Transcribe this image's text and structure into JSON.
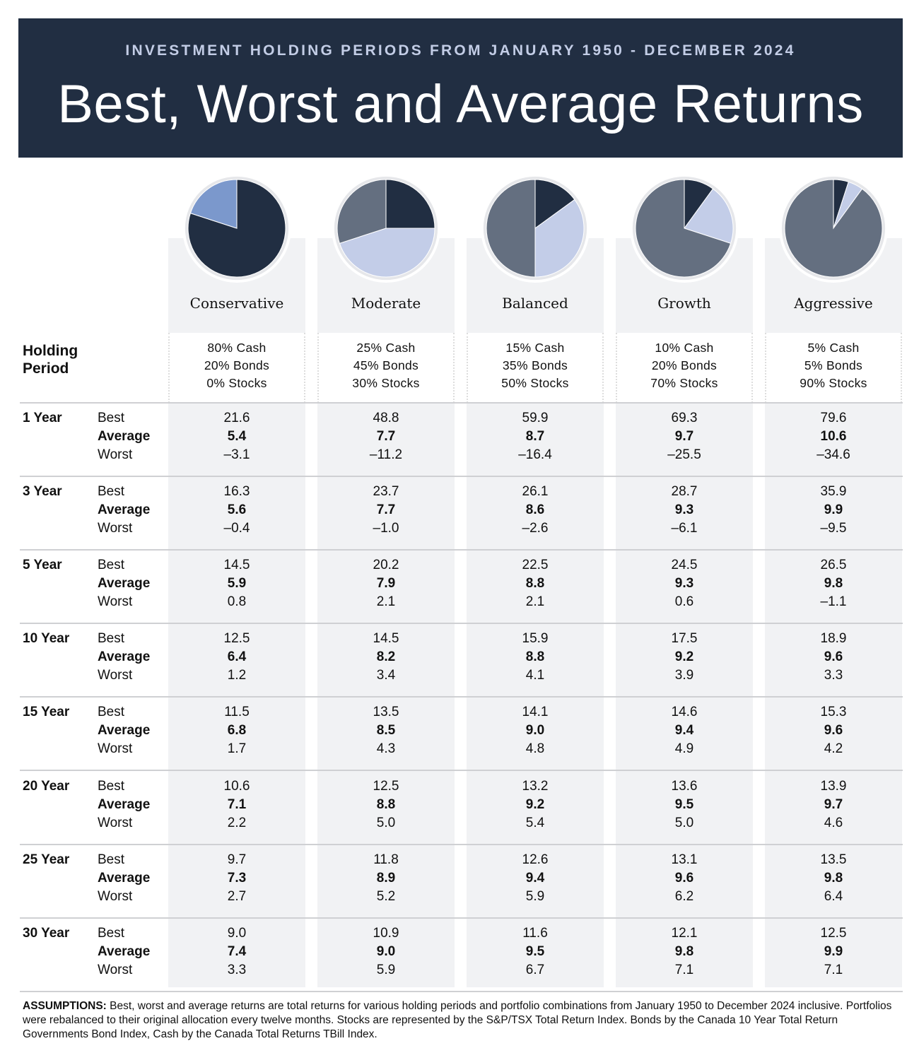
{
  "header": {
    "subtitle": "INVESTMENT HOLDING PERIODS FROM JANUARY 1950 - DECEMBER 2024",
    "title": "Best, Worst and Average Returns"
  },
  "holding_period_label": "Holding Period",
  "colors": {
    "cash": "#212e42",
    "bonds": "#c3cde8",
    "bonds_conservative": "#7b98cc",
    "stocks": "#646f80",
    "banner": "#212e42"
  },
  "chart_data": {
    "type": "table",
    "portfolios": [
      {
        "name": "Conservative",
        "alloc": [
          "80% Cash",
          "20% Bonds",
          "0% Stocks"
        ],
        "pie": {
          "cash": 80,
          "bonds": 20,
          "stocks": 0
        }
      },
      {
        "name": "Moderate",
        "alloc": [
          "25% Cash",
          "45% Bonds",
          "30% Stocks"
        ],
        "pie": {
          "cash": 25,
          "bonds": 45,
          "stocks": 30
        }
      },
      {
        "name": "Balanced",
        "alloc": [
          "15% Cash",
          "35% Bonds",
          "50% Stocks"
        ],
        "pie": {
          "cash": 15,
          "bonds": 35,
          "stocks": 50
        }
      },
      {
        "name": "Growth",
        "alloc": [
          "10% Cash",
          "20% Bonds",
          "70% Stocks"
        ],
        "pie": {
          "cash": 10,
          "bonds": 20,
          "stocks": 70
        }
      },
      {
        "name": "Aggressive",
        "alloc": [
          "5% Cash",
          "5% Bonds",
          "90% Stocks"
        ],
        "pie": {
          "cash": 5,
          "bonds": 5,
          "stocks": 90
        }
      }
    ],
    "row_labels": [
      "Best",
      "Average",
      "Worst"
    ],
    "periods": [
      {
        "label": "1 Year",
        "best": [
          "21.6",
          "48.8",
          "59.9",
          "69.3",
          "79.6"
        ],
        "average": [
          "5.4",
          "7.7",
          "8.7",
          "9.7",
          "10.6"
        ],
        "worst": [
          "-3.1",
          "-11.2",
          "-16.4",
          "-25.5",
          "-34.6"
        ]
      },
      {
        "label": "3 Year",
        "best": [
          "16.3",
          "23.7",
          "26.1",
          "28.7",
          "35.9"
        ],
        "average": [
          "5.6",
          "7.7",
          "8.6",
          "9.3",
          "9.9"
        ],
        "worst": [
          "-0.4",
          "-1.0",
          "-2.6",
          "-6.1",
          "-9.5"
        ]
      },
      {
        "label": "5 Year",
        "best": [
          "14.5",
          "20.2",
          "22.5",
          "24.5",
          "26.5"
        ],
        "average": [
          "5.9",
          "7.9",
          "8.8",
          "9.3",
          "9.8"
        ],
        "worst": [
          "0.8",
          "2.1",
          "2.1",
          "0.6",
          "-1.1"
        ]
      },
      {
        "label": "10 Year",
        "best": [
          "12.5",
          "14.5",
          "15.9",
          "17.5",
          "18.9"
        ],
        "average": [
          "6.4",
          "8.2",
          "8.8",
          "9.2",
          "9.6"
        ],
        "worst": [
          "1.2",
          "3.4",
          "4.1",
          "3.9",
          "3.3"
        ]
      },
      {
        "label": "15 Year",
        "best": [
          "11.5",
          "13.5",
          "14.1",
          "14.6",
          "15.3"
        ],
        "average": [
          "6.8",
          "8.5",
          "9.0",
          "9.4",
          "9.6"
        ],
        "worst": [
          "1.7",
          "4.3",
          "4.8",
          "4.9",
          "4.2"
        ]
      },
      {
        "label": "20 Year",
        "best": [
          "10.6",
          "12.5",
          "13.2",
          "13.6",
          "13.9"
        ],
        "average": [
          "7.1",
          "8.8",
          "9.2",
          "9.5",
          "9.7"
        ],
        "worst": [
          "2.2",
          "5.0",
          "5.4",
          "5.0",
          "4.6"
        ]
      },
      {
        "label": "25 Year",
        "best": [
          "9.7",
          "11.8",
          "12.6",
          "13.1",
          "13.5"
        ],
        "average": [
          "7.3",
          "8.9",
          "9.4",
          "9.6",
          "9.8"
        ],
        "worst": [
          "2.7",
          "5.2",
          "5.9",
          "6.2",
          "6.4"
        ]
      },
      {
        "label": "30 Year",
        "best": [
          "9.0",
          "10.9",
          "11.6",
          "12.1",
          "12.5"
        ],
        "average": [
          "7.4",
          "9.0",
          "9.5",
          "9.8",
          "9.9"
        ],
        "worst": [
          "3.3",
          "5.9",
          "6.7",
          "7.1",
          "7.1"
        ]
      }
    ]
  },
  "footer": {
    "label": "ASSUMPTIONS:",
    "text": " Best, worst and average returns are total returns for various holding periods and portfolio combinations from January 1950 to December 2024 inclusive. Portfolios were rebalanced to their original allocation every twelve months. Stocks are represented by the S&P/TSX Total Return Index. Bonds by the Canada 10 Year Total Return Governments Bond Index, Cash by the Canada Total Returns TBill Index."
  }
}
